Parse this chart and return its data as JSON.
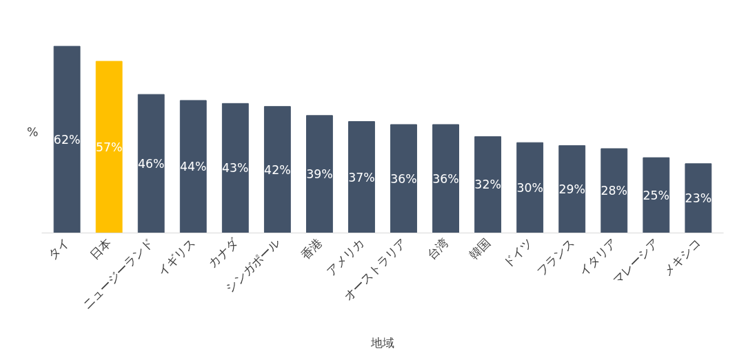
{
  "chart_data": {
    "type": "bar",
    "xlabel": "地域",
    "ylabel": "%",
    "categories": [
      "タイ",
      "日本",
      "ニュージーランド",
      "イギリス",
      "カナダ",
      "シンガポール",
      "香港",
      "アメリカ",
      "オーストラリア",
      "台湾",
      "韓国",
      "ドイツ",
      "フランス",
      "イタリア",
      "マレーシア",
      "メキシコ"
    ],
    "values": [
      62,
      57,
      46,
      44,
      43,
      42,
      39,
      37,
      36,
      36,
      32,
      30,
      29,
      28,
      25,
      23
    ],
    "colors": [
      "#435369",
      "#ffc000",
      "#435369",
      "#435369",
      "#435369",
      "#435369",
      "#435369",
      "#435369",
      "#435369",
      "#435369",
      "#435369",
      "#435369",
      "#435369",
      "#435369",
      "#435369",
      "#435369"
    ],
    "value_labels": [
      "62%",
      "57%",
      "46%",
      "44%",
      "43%",
      "42%",
      "39%",
      "37%",
      "36%",
      "36%",
      "32%",
      "30%",
      "29%",
      "28%",
      "25%",
      "23%"
    ],
    "grid": false
  }
}
